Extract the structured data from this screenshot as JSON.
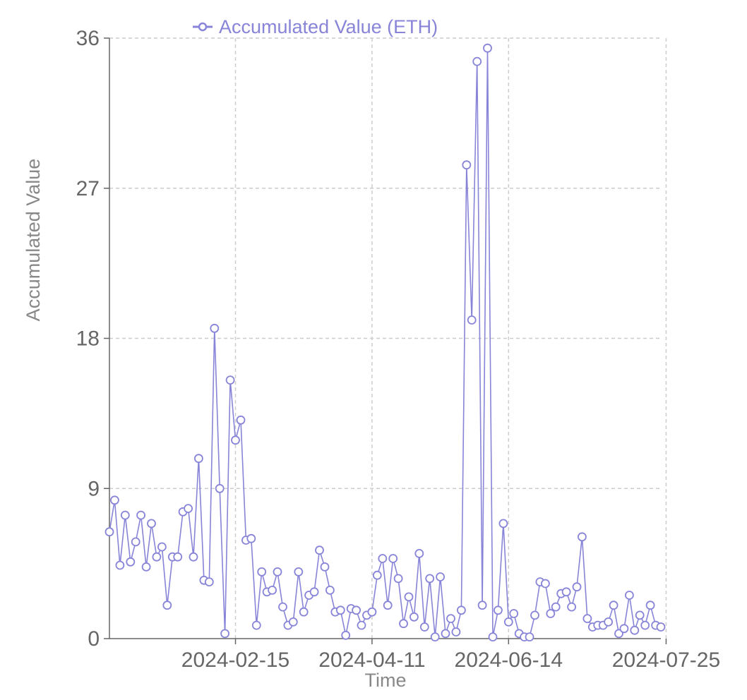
{
  "chart_data": {
    "type": "line",
    "xlabel": "Time",
    "ylabel": "Accumulated Value",
    "ylim": [
      0,
      36
    ],
    "yticks": [
      "0",
      "9",
      "18",
      "27",
      "36"
    ],
    "xticks": [
      {
        "label": "2024-02-15",
        "index": 24
      },
      {
        "label": "2024-04-11",
        "index": 50
      },
      {
        "label": "2024-06-14",
        "index": 76
      },
      {
        "label": "2024-07-25",
        "index": 106
      }
    ],
    "grid": true,
    "legend_position": "top-center",
    "colors": {
      "series": "#8884d8",
      "grid": "#cccccc",
      "axis": "#666666"
    },
    "series": [
      {
        "name": "Accumulated Value (ETH)",
        "values": [
          6.4,
          8.3,
          4.4,
          7.4,
          4.6,
          5.8,
          7.4,
          4.3,
          6.9,
          4.9,
          5.5,
          2.0,
          4.9,
          4.9,
          7.6,
          7.8,
          4.9,
          10.8,
          3.5,
          3.4,
          18.6,
          9.0,
          0.3,
          15.5,
          11.9,
          13.1,
          5.9,
          6.0,
          0.8,
          4.0,
          2.8,
          2.9,
          4.0,
          1.9,
          0.8,
          1.0,
          4.0,
          1.6,
          2.6,
          2.8,
          5.3,
          4.3,
          2.9,
          1.6,
          1.7,
          0.2,
          1.8,
          1.7,
          0.8,
          1.4,
          1.6,
          3.8,
          4.8,
          2.0,
          4.8,
          3.6,
          0.9,
          2.5,
          1.3,
          5.1,
          0.7,
          3.6,
          0.1,
          3.7,
          0.3,
          1.2,
          0.4,
          1.7,
          28.4,
          19.1,
          34.6,
          2.0,
          35.4,
          0.1,
          1.7,
          6.9,
          1.0,
          1.5,
          0.3,
          0.1,
          0.1,
          1.4,
          3.4,
          3.3,
          1.5,
          1.9,
          2.7,
          2.8,
          1.9,
          3.1,
          6.1,
          1.2,
          0.7,
          0.8,
          0.8,
          1.0,
          2.0,
          0.3,
          0.6,
          2.6,
          0.5,
          1.4,
          0.8,
          2.0,
          0.8,
          0.7
        ]
      }
    ]
  }
}
